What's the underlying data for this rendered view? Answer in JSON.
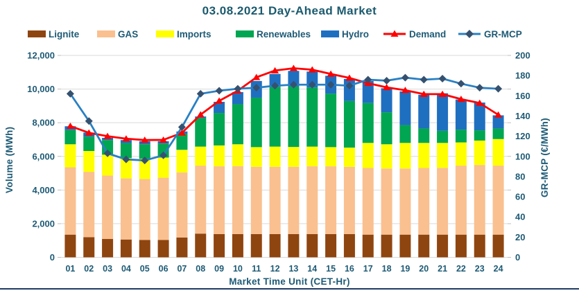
{
  "header": {
    "title": "03.08.2021  Day-Ahead Market"
  },
  "colors": {
    "title_text": "#1B5A6E",
    "axis_text": "#1D5A75",
    "grid": "#D9D9D9",
    "tick": "#BFBFBF",
    "bottom_border": "#1F3864",
    "background": "#FFFFFF"
  },
  "legend": {
    "items": [
      {
        "label": "Lignite",
        "type": "swatch",
        "color": "#8F4510",
        "x": 40
      },
      {
        "label": "GAS",
        "type": "swatch",
        "color": "#FAC090",
        "x": 140
      },
      {
        "label": "Imports",
        "type": "swatch",
        "color": "#FFFF00",
        "x": 225
      },
      {
        "label": "Renewables",
        "type": "swatch",
        "color": "#00A651",
        "x": 340
      },
      {
        "label": "Hydro",
        "type": "swatch",
        "color": "#1F6FC0",
        "x": 463
      },
      {
        "label": "Demand",
        "type": "line-triangle",
        "color": "#FF0000",
        "marker_color": "#FF0000",
        "x": 552
      },
      {
        "label": "GR-MCP",
        "type": "line-diamond",
        "color": "#2980C4",
        "marker_color": "#35516F",
        "x": 660
      }
    ]
  },
  "axes": {
    "y_left": {
      "title": "Volume (MWh)",
      "ticks": [
        "0",
        "2,000",
        "4,000",
        "6,000",
        "8,000",
        "10,000",
        "12,000"
      ],
      "min": 0,
      "max": 12000,
      "step": 2000
    },
    "y_right": {
      "title": "GR-MCP (€/MWh)",
      "ticks": [
        "0",
        "20",
        "40",
        "60",
        "80",
        "100",
        "120",
        "140",
        "160",
        "180",
        "200"
      ],
      "min": 0,
      "max": 200,
      "step": 20
    },
    "x": {
      "title": "Market Time Unit (CET-Hr)"
    }
  },
  "chart_data": {
    "type": "bar",
    "subtype": "stacked-bar-with-lines",
    "title": "03.08.2021  Day-Ahead Market",
    "xlabel": "Market Time Unit (CET-Hr)",
    "ylabel": "Volume (MWh)",
    "ylabel_right": "GR-MCP (€/MWh)",
    "ylim_left": [
      0,
      12000
    ],
    "ylim_right": [
      0,
      200
    ],
    "grid": true,
    "legend_position": "top",
    "categories": [
      "01",
      "02",
      "03",
      "04",
      "05",
      "06",
      "07",
      "08",
      "09",
      "10",
      "11",
      "12",
      "13",
      "14",
      "15",
      "16",
      "17",
      "18",
      "19",
      "20",
      "21",
      "22",
      "23",
      "24"
    ],
    "series": [
      {
        "name": "Lignite",
        "type": "bar",
        "axis": "left",
        "color": "#8F4510",
        "values": [
          1350,
          1200,
          1090,
          1060,
          1030,
          1030,
          1180,
          1410,
          1380,
          1380,
          1380,
          1380,
          1380,
          1380,
          1380,
          1380,
          1350,
          1350,
          1350,
          1350,
          1350,
          1350,
          1350,
          1350
        ]
      },
      {
        "name": "GAS",
        "type": "bar",
        "axis": "left",
        "color": "#FAC090",
        "values": [
          4000,
          3880,
          3770,
          3630,
          3620,
          3700,
          3860,
          4040,
          4030,
          4040,
          4000,
          4000,
          4000,
          4030,
          4030,
          4000,
          3960,
          3930,
          3930,
          3960,
          3970,
          4100,
          4140,
          4100
        ]
      },
      {
        "name": "Imports",
        "type": "bar",
        "axis": "left",
        "color": "#FFFF00",
        "values": [
          1370,
          1240,
          1240,
          1210,
          1210,
          1200,
          1350,
          1130,
          1240,
          1300,
          1170,
          1200,
          1180,
          1170,
          1140,
          1140,
          1490,
          1440,
          1520,
          1490,
          1480,
          1380,
          1450,
          1580
        ]
      },
      {
        "name": "Renewables",
        "type": "bar",
        "axis": "left",
        "color": "#00A651",
        "values": [
          840,
          850,
          870,
          890,
          860,
          830,
          960,
          1700,
          1930,
          2380,
          2940,
          3560,
          3590,
          3520,
          3180,
          2770,
          2370,
          1900,
          1060,
          860,
          720,
          760,
          610,
          630
        ]
      },
      {
        "name": "Hydro",
        "type": "bar",
        "axis": "left",
        "color": "#1F6FC0",
        "values": [
          230,
          240,
          130,
          180,
          180,
          140,
          130,
          90,
          660,
          720,
          990,
          760,
          930,
          940,
          1060,
          1310,
          1310,
          1430,
          2000,
          2000,
          2230,
          1790,
          1650,
          780
        ]
      },
      {
        "name": "Demand",
        "type": "line",
        "axis": "left",
        "color": "#FF0000",
        "marker": "triangle",
        "marker_color": "#FF0000",
        "values": [
          7800,
          7400,
          7200,
          7050,
          6970,
          6980,
          7400,
          8480,
          9300,
          9900,
          10700,
          11100,
          11240,
          11150,
          10900,
          10660,
          10350,
          10100,
          9930,
          9700,
          9700,
          9400,
          9170,
          8470
        ]
      },
      {
        "name": "GR-MCP",
        "type": "line",
        "axis": "right",
        "color": "#2980C4",
        "marker": "diamond",
        "marker_color": "#35516F",
        "values": [
          162,
          135,
          103,
          97,
          96,
          101,
          129,
          162,
          165,
          167,
          168,
          170,
          171,
          171,
          171,
          170,
          176,
          175,
          178,
          176,
          177,
          172,
          168,
          167
        ]
      }
    ]
  }
}
